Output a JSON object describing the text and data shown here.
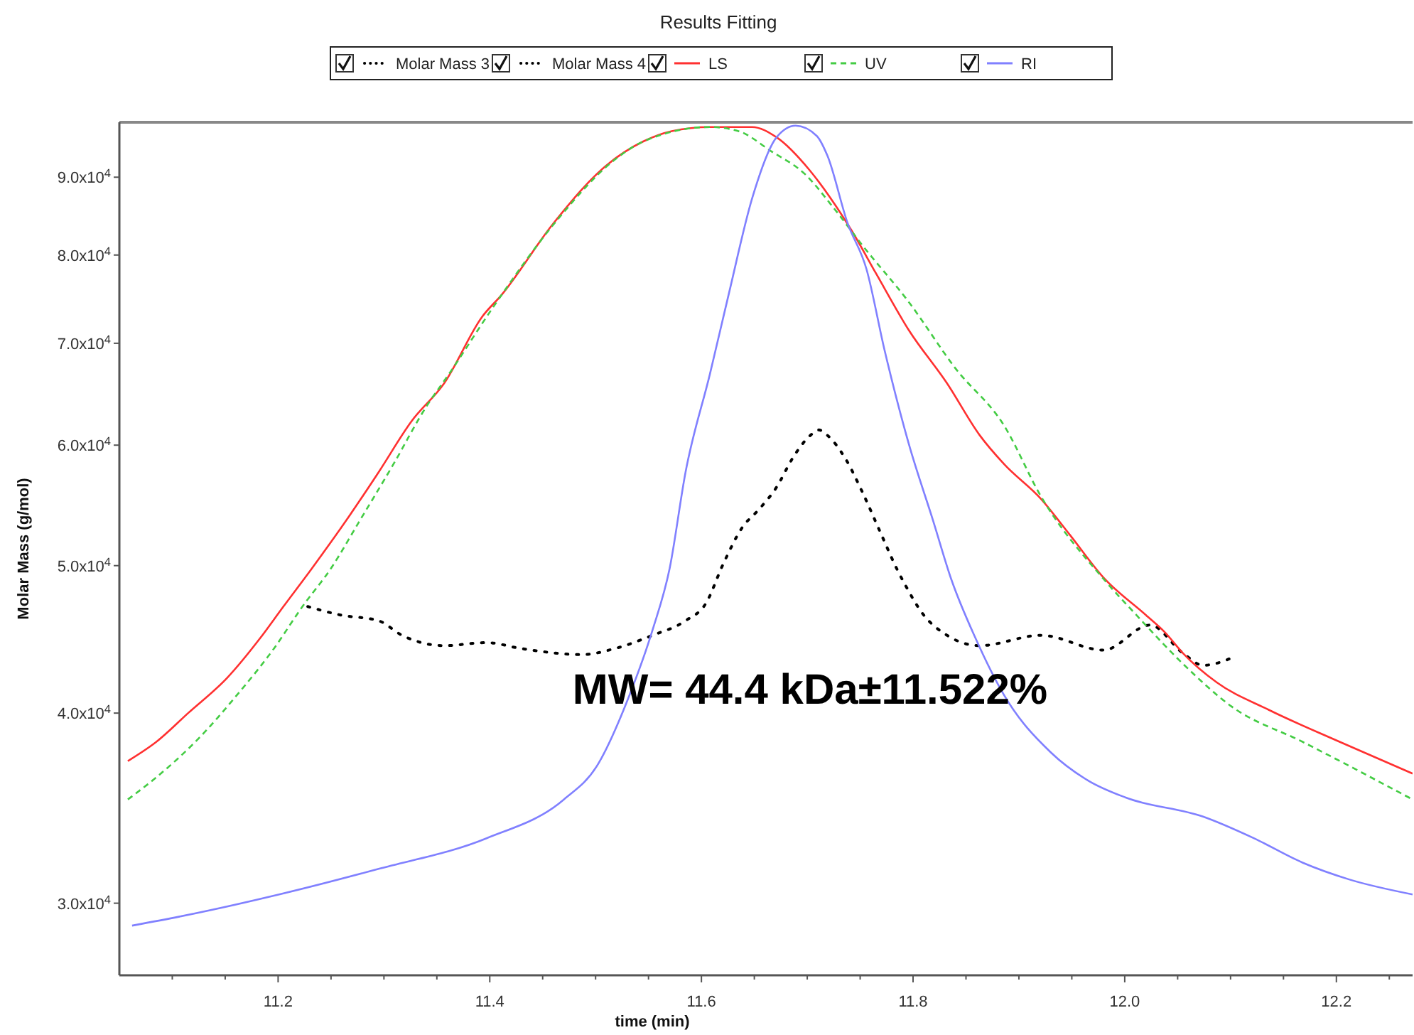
{
  "chart_data": {
    "type": "line",
    "title": "Results Fitting",
    "xlabel": "time (min)",
    "ylabel": "Molar Mass (g/mol)",
    "log": "y",
    "grid": false,
    "legend": "top",
    "xlim": [
      11.05,
      12.272
    ],
    "ylim": [
      26900,
      97800
    ],
    "xticks": [
      {
        "value": 11.1,
        "label": null
      },
      {
        "value": 11.15,
        "label": null
      },
      11.2,
      {
        "value": 11.25,
        "label": null
      },
      {
        "value": 11.3,
        "label": null
      },
      {
        "value": 11.35,
        "label": null
      },
      11.4,
      {
        "value": 11.45,
        "label": null
      },
      {
        "value": 11.5,
        "label": null
      },
      {
        "value": 11.55,
        "label": null
      },
      11.6,
      {
        "value": 11.65,
        "label": null
      },
      {
        "value": 11.7,
        "label": null
      },
      {
        "value": 11.75,
        "label": null
      },
      11.8,
      {
        "value": 11.85,
        "label": null
      },
      {
        "value": 11.9,
        "label": null
      },
      {
        "value": 11.95,
        "label": null
      },
      {
        "value": 12.0,
        "label": "12.0"
      },
      {
        "value": 12.05,
        "label": null
      },
      {
        "value": 12.1,
        "label": null
      },
      {
        "value": 12.15,
        "label": null
      },
      12.2,
      {
        "value": 12.25,
        "label": null
      }
    ],
    "yticks": [
      {
        "value": 30000,
        "label": "3.0x10$^{4}$"
      },
      {
        "value": 40000,
        "label": "4.0x10$^{4}$"
      },
      {
        "value": 50000,
        "label": "5.0x10$^{4}$"
      },
      {
        "value": 60000,
        "label": "6.0x10$^{4}$"
      },
      {
        "value": 70000,
        "label": "7.0x10$^{4}$"
      },
      {
        "value": 80000,
        "label": "8.0x10$^{4}$"
      },
      {
        "value": 90000,
        "label": "9.0x10$^{4}$"
      }
    ],
    "annotations": [
      "MW= 44.4 kDa±11.522%"
    ],
    "series": [
      {
        "name": "Molar Mass 3",
        "color": "#000000",
        "line_style": "dotted",
        "x": [
          11.228,
          11.259,
          11.295,
          11.317,
          11.357,
          11.397,
          11.43,
          11.487,
          11.518,
          11.554,
          11.585,
          11.604,
          11.621,
          11.638,
          11.655,
          11.671,
          11.686,
          11.703,
          11.711,
          11.719,
          11.736,
          11.752,
          11.769,
          11.785,
          11.793,
          11.809,
          11.832,
          11.863,
          11.921,
          11.98,
          12.024,
          12.055,
          12.074,
          12.105
        ],
        "values": [
          47000,
          46400,
          46000,
          45000,
          44300,
          44500,
          44100,
          43700,
          44100,
          45000,
          46000,
          47200,
          50200,
          52900,
          54500,
          56300,
          58800,
          60900,
          61400,
          60900,
          58800,
          55900,
          52600,
          49700,
          48500,
          46500,
          45000,
          44300,
          45000,
          44000,
          45700,
          43800,
          43000,
          43600
        ]
      },
      {
        "name": "Molar Mass 4",
        "color": "#000000",
        "line_style": "dotted"
      },
      {
        "name": "LS",
        "color": "#ff3030",
        "line_style": "solid",
        "x": [
          11.058,
          11.085,
          11.115,
          11.152,
          11.183,
          11.205,
          11.232,
          11.268,
          11.295,
          11.326,
          11.357,
          11.393,
          11.411,
          11.46,
          11.51,
          11.545,
          11.572,
          11.608,
          11.648,
          11.671,
          11.702,
          11.722,
          11.742,
          11.765,
          11.796,
          11.832,
          11.863,
          11.886,
          11.921,
          11.948,
          11.98,
          12.02,
          12.038,
          12.055,
          12.087,
          12.136,
          12.203,
          12.272
        ],
        "values": [
          37200,
          38300,
          40000,
          42200,
          44800,
          47000,
          49800,
          54000,
          57600,
          62200,
          65900,
          72900,
          75300,
          83900,
          91600,
          95000,
          96500,
          97100,
          97100,
          95600,
          91000,
          87200,
          83000,
          77800,
          71400,
          65900,
          60900,
          58300,
          55300,
          52400,
          49100,
          46400,
          45200,
          43800,
          41900,
          40200,
          38300,
          36500
        ]
      },
      {
        "name": "UV",
        "color": "#44cc44",
        "line_style": "dashed",
        "x": [
          11.058,
          11.085,
          11.125,
          11.161,
          11.196,
          11.223,
          11.25,
          11.277,
          11.309,
          11.34,
          11.362,
          11.403,
          11.464,
          11.518,
          11.545,
          11.608,
          11.635,
          11.666,
          11.698,
          11.725,
          11.752,
          11.796,
          11.84,
          11.886,
          11.921,
          11.98,
          12.011,
          12.055,
          12.101,
          12.168,
          12.272
        ],
        "values": [
          35100,
          36300,
          38500,
          41100,
          44100,
          47000,
          49800,
          53500,
          58300,
          63600,
          66900,
          73900,
          84400,
          92400,
          95000,
          97100,
          96500,
          93600,
          90400,
          85900,
          81200,
          74500,
          67400,
          61800,
          55500,
          49000,
          46400,
          43100,
          40400,
          38300,
          35100
        ]
      },
      {
        "name": "RI",
        "color": "#8080ff",
        "line_style": "solid",
        "x": [
          11.062,
          11.107,
          11.201,
          11.295,
          11.397,
          11.47,
          11.501,
          11.532,
          11.554,
          11.57,
          11.585,
          11.608,
          11.626,
          11.648,
          11.671,
          11.689,
          11.709,
          11.719,
          11.738,
          11.756,
          11.773,
          11.796,
          11.819,
          11.836,
          11.859,
          11.886,
          11.93,
          11.966,
          12.001,
          12.074,
          12.122,
          12.168,
          12.212,
          12.272
        ],
        "values": [
          29000,
          29400,
          30400,
          31600,
          33100,
          35100,
          36900,
          41100,
          45400,
          49800,
          57600,
          66800,
          75500,
          87200,
          95600,
          97300,
          95800,
          93000,
          84000,
          78300,
          69300,
          60100,
          53500,
          49000,
          44800,
          41100,
          37700,
          36100,
          35200,
          34200,
          33100,
          31900,
          31100,
          30400
        ]
      }
    ]
  }
}
